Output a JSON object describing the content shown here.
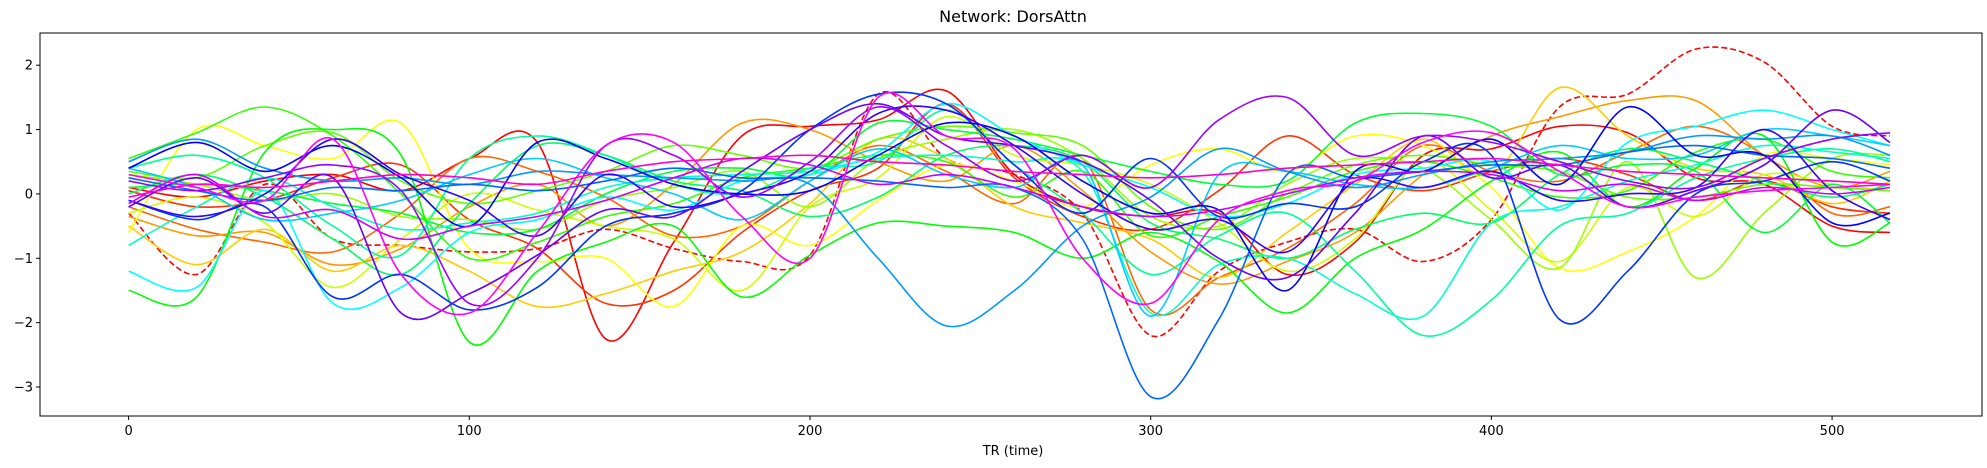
{
  "chart_data": {
    "type": "line",
    "title": "Network: DorsAttn",
    "xlabel": "TR (time)",
    "ylabel": "",
    "xlim": [
      -26,
      544
    ],
    "ylim": [
      -3.45,
      2.5
    ],
    "xticks": [
      0,
      100,
      200,
      300,
      400,
      500
    ],
    "yticks": [
      -3,
      -2,
      -1,
      0,
      1,
      2
    ],
    "grid": false,
    "legend": "none",
    "x": [
      0,
      20,
      40,
      60,
      80,
      100,
      120,
      140,
      160,
      180,
      200,
      220,
      240,
      260,
      280,
      300,
      320,
      340,
      360,
      380,
      400,
      420,
      440,
      460,
      480,
      500,
      517
    ],
    "series": [
      {
        "color": "#ff0000",
        "dashed": true,
        "values": [
          -0.3,
          -1.25,
          0.15,
          -0.7,
          -0.8,
          -0.9,
          -0.85,
          -0.55,
          -0.85,
          -1.05,
          -0.95,
          1.55,
          0.55,
          0.3,
          -0.3,
          -2.2,
          -1.2,
          -0.75,
          -0.55,
          -1.05,
          -0.4,
          1.35,
          1.55,
          2.25,
          2.05,
          1.05,
          0.9
        ]
      },
      {
        "color": "#ff0000",
        "values": [
          0.1,
          -0.05,
          0.2,
          0.3,
          0.05,
          0.55,
          0.8,
          -2.25,
          -0.75,
          0.9,
          1.05,
          1.15,
          1.6,
          0.3,
          -0.2,
          -0.35,
          -0.3,
          -1.25,
          -0.75,
          0.6,
          0.7,
          1.05,
          0.95,
          0.25,
          0.15,
          -0.5,
          -0.6
        ]
      },
      {
        "color": "#ff3300",
        "values": [
          0.05,
          -0.2,
          -0.1,
          0.25,
          0.45,
          -0.4,
          -0.85,
          -1.7,
          -1.5,
          -0.6,
          0.05,
          0.4,
          1.4,
          0.25,
          -0.35,
          -0.55,
          0.05,
          0.9,
          0.3,
          0.05,
          0.35,
          0.55,
          0.3,
          -0.1,
          0.2,
          -0.2,
          -0.3
        ]
      },
      {
        "color": "#ff6600",
        "values": [
          -0.2,
          -0.55,
          -0.75,
          -0.9,
          -0.3,
          0.55,
          0.35,
          -0.05,
          -0.65,
          -0.5,
          0.2,
          0.75,
          0.35,
          -0.15,
          0.55,
          -1.8,
          -1.3,
          -0.85,
          -0.15,
          0.75,
          0.35,
          0.2,
          0.65,
          1.05,
          0.6,
          -0.3,
          -0.2
        ]
      },
      {
        "color": "#ff9900",
        "values": [
          -0.35,
          -0.65,
          -0.6,
          -1.1,
          -0.85,
          -0.2,
          0.15,
          -0.5,
          0.15,
          1.1,
          1.0,
          0.5,
          0.2,
          0.75,
          0.05,
          -0.9,
          -1.4,
          -1.05,
          -0.6,
          0.3,
          0.9,
          1.2,
          1.45,
          1.45,
          0.6,
          0.1,
          0.35
        ]
      },
      {
        "color": "#ffcc00",
        "values": [
          -0.5,
          -1.1,
          -0.55,
          -1.2,
          -0.8,
          -1.2,
          -1.75,
          -1.55,
          -1.2,
          -0.9,
          -0.15,
          0.85,
          0.55,
          -0.2,
          -0.45,
          -0.7,
          -1.3,
          -0.6,
          0.15,
          0.85,
          0.3,
          1.65,
          0.9,
          0.4,
          0.3,
          -0.15,
          0.2
        ]
      },
      {
        "color": "#ffff00",
        "values": [
          -0.6,
          1.0,
          0.75,
          0.55,
          1.1,
          -0.85,
          -1.05,
          -1.0,
          -1.75,
          -0.5,
          -0.8,
          -0.1,
          0.45,
          0.2,
          -0.2,
          0.45,
          0.7,
          0.35,
          0.9,
          0.75,
          0.1,
          -1.15,
          -0.9,
          -0.35,
          0.6,
          0.55,
          0.45
        ]
      },
      {
        "color": "#ccff00",
        "values": [
          -0.3,
          -0.05,
          -0.45,
          -1.45,
          -0.7,
          0.0,
          -0.25,
          -0.5,
          -0.7,
          -1.5,
          -0.2,
          0.25,
          1.2,
          0.6,
          0.45,
          0.15,
          -0.45,
          -1.2,
          -0.7,
          0.5,
          -0.25,
          -1.05,
          0.1,
          -0.35,
          0.3,
          0.15,
          0.05
        ]
      },
      {
        "color": "#99ff00",
        "values": [
          0.3,
          0.15,
          -0.1,
          0.0,
          -0.35,
          -0.4,
          -0.55,
          -0.1,
          0.1,
          0.35,
          -0.2,
          0.55,
          0.85,
          1.0,
          0.55,
          -0.35,
          -0.5,
          0.15,
          0.55,
          0.4,
          -0.4,
          -1.15,
          0.5,
          -1.3,
          -0.3,
          0.55,
          0.6
        ]
      },
      {
        "color": "#66ff00",
        "values": [
          0.35,
          0.25,
          0.75,
          0.95,
          0.2,
          -0.15,
          0.05,
          0.35,
          0.75,
          0.6,
          0.4,
          0.85,
          1.05,
          0.95,
          0.75,
          -0.2,
          -0.55,
          0.0,
          0.45,
          0.6,
          0.45,
          0.35,
          -0.05,
          -0.05,
          0.15,
          0.1,
          0.05
        ]
      },
      {
        "color": "#33ff00",
        "values": [
          0.55,
          0.95,
          1.35,
          0.9,
          0.0,
          -1.0,
          -0.75,
          -0.35,
          -0.15,
          0.25,
          0.4,
          0.6,
          0.5,
          -0.05,
          0.35,
          -0.65,
          -0.35,
          -0.05,
          0.35,
          0.5,
          0.25,
          -0.05,
          0.05,
          0.65,
          0.85,
          0.35,
          0.25
        ]
      },
      {
        "color": "#00ff00",
        "values": [
          -1.5,
          -1.6,
          0.65,
          1.0,
          0.6,
          -2.3,
          -1.2,
          -0.75,
          -0.5,
          -1.6,
          -0.95,
          -0.45,
          -0.5,
          -0.6,
          -1.0,
          -0.6,
          -1.05,
          -1.85,
          -1.0,
          -0.55,
          0.2,
          0.65,
          -0.2,
          0.4,
          0.9,
          -0.75,
          -0.45
        ]
      },
      {
        "color": "#00ff33",
        "values": [
          0.1,
          0.15,
          0.05,
          -0.15,
          -0.3,
          -0.6,
          -0.55,
          0.0,
          0.35,
          0.4,
          0.3,
          1.1,
          1.0,
          0.85,
          0.6,
          0.35,
          0.15,
          0.2,
          1.1,
          1.25,
          1.05,
          0.3,
          0.45,
          0.35,
          -0.6,
          0.15,
          -0.45
        ]
      },
      {
        "color": "#00ff66",
        "values": [
          0.0,
          0.3,
          -0.05,
          -0.7,
          -1.25,
          -0.15,
          0.75,
          0.6,
          0.2,
          0.05,
          -0.35,
          -0.05,
          0.6,
          0.75,
          0.5,
          -0.45,
          -0.7,
          -1.0,
          -0.55,
          -0.3,
          -0.45,
          0.3,
          0.7,
          0.5,
          0.2,
          -0.05,
          0.15
        ]
      },
      {
        "color": "#00ff99",
        "values": [
          0.4,
          0.6,
          0.25,
          -0.5,
          -0.95,
          0.55,
          0.9,
          0.6,
          0.15,
          0.0,
          0.4,
          0.5,
          1.3,
          0.45,
          -0.3,
          -1.25,
          -0.65,
          -0.3,
          -1.2,
          -2.2,
          -1.65,
          -0.5,
          -0.3,
          0.25,
          0.55,
          0.7,
          0.5
        ]
      },
      {
        "color": "#00ffcc",
        "values": [
          -0.8,
          -0.2,
          0.25,
          -0.2,
          -0.55,
          -0.45,
          -0.3,
          0.1,
          0.25,
          0.3,
          0.35,
          0.55,
          0.6,
          0.5,
          0.35,
          -1.85,
          -1.1,
          -1.0,
          -1.55,
          -1.9,
          -0.45,
          -0.2,
          0.2,
          0.45,
          0.75,
          0.65,
          0.55
        ]
      },
      {
        "color": "#00ffff",
        "values": [
          -1.2,
          -1.45,
          0.05,
          -1.7,
          -1.45,
          -0.6,
          -0.4,
          -0.05,
          -0.25,
          0.2,
          0.3,
          0.65,
          1.4,
          0.9,
          0.45,
          0.1,
          -0.35,
          -0.15,
          0.3,
          0.4,
          0.5,
          -0.25,
          0.8,
          1.05,
          1.3,
          1.0,
          0.75
        ]
      },
      {
        "color": "#00ccff",
        "values": [
          0.4,
          0.1,
          -0.4,
          -0.3,
          -0.1,
          0.3,
          0.55,
          0.25,
          0.0,
          -0.4,
          0.2,
          0.7,
          0.3,
          0.1,
          0.45,
          -1.9,
          0.3,
          0.35,
          0.15,
          0.1,
          0.4,
          0.75,
          0.55,
          0.6,
          1.0,
          0.9,
          0.75
        ]
      },
      {
        "color": "#0099ff",
        "values": [
          0.5,
          0.85,
          0.4,
          0.2,
          0.25,
          0.15,
          0.35,
          0.3,
          0.25,
          0.2,
          0.15,
          -1.0,
          -2.05,
          -1.5,
          -0.5,
          -0.05,
          0.7,
          0.35,
          0.1,
          0.3,
          0.5,
          0.55,
          0.65,
          0.9,
          0.85,
          0.9,
          0.6
        ]
      },
      {
        "color": "#0066ff",
        "values": [
          0.25,
          0.05,
          -0.1,
          0.1,
          0.05,
          0.15,
          0.05,
          0.2,
          0.4,
          0.25,
          0.25,
          0.2,
          0.1,
          0.1,
          -0.7,
          -3.15,
          -1.95,
          0.3,
          0.25,
          0.35,
          0.45,
          0.45,
          0.65,
          0.75,
          0.6,
          0.55,
          0.4
        ]
      },
      {
        "color": "#0033ff",
        "values": [
          -0.1,
          -0.4,
          -0.2,
          -1.6,
          -1.25,
          -1.8,
          -1.45,
          -0.5,
          -0.3,
          0.05,
          1.0,
          1.55,
          1.4,
          0.45,
          -0.3,
          0.55,
          -0.35,
          -0.15,
          -0.2,
          0.5,
          0.6,
          -1.95,
          -1.2,
          0.0,
          0.2,
          0.5,
          0.2
        ]
      },
      {
        "color": "#0000ff",
        "values": [
          0.4,
          0.8,
          0.35,
          0.75,
          0.25,
          -0.5,
          0.8,
          0.55,
          0.15,
          0.0,
          0.05,
          0.6,
          1.1,
          0.9,
          0.2,
          -0.3,
          -0.25,
          -1.5,
          0.35,
          0.35,
          0.85,
          0.15,
          1.35,
          0.6,
          0.6,
          -0.45,
          -0.3
        ]
      },
      {
        "color": "#3300ff",
        "values": [
          -0.1,
          -0.35,
          0.0,
          0.85,
          0.3,
          -0.1,
          -0.65,
          0.3,
          -0.2,
          0.0,
          0.35,
          1.25,
          1.3,
          0.75,
          0.0,
          -0.55,
          -0.4,
          -0.9,
          0.2,
          0.1,
          0.35,
          -0.1,
          0.0,
          0.1,
          1.0,
          0.05,
          -0.4
        ]
      },
      {
        "color": "#6600ff",
        "values": [
          -0.2,
          0.25,
          -0.3,
          0.25,
          -1.85,
          -1.55,
          -0.95,
          -0.25,
          -0.35,
          0.35,
          1.0,
          1.4,
          0.9,
          0.75,
          0.5,
          -0.1,
          -1.0,
          -1.3,
          -0.3,
          0.9,
          0.25,
          0.45,
          -0.2,
          0.05,
          0.45,
          1.3,
          0.8
        ]
      },
      {
        "color": "#9900ff",
        "values": [
          0.2,
          0.05,
          0.25,
          0.45,
          0.05,
          -1.7,
          -1.0,
          0.75,
          0.6,
          -0.05,
          0.5,
          1.35,
          0.75,
          0.2,
          0.6,
          0.1,
          1.15,
          1.5,
          0.6,
          0.9,
          0.8,
          0.5,
          0.2,
          0.1,
          0.55,
          0.85,
          0.95
        ]
      },
      {
        "color": "#cc00ff",
        "values": [
          -0.15,
          0.3,
          -0.35,
          -0.25,
          -0.7,
          -0.5,
          -0.35,
          -0.1,
          0.25,
          0.55,
          0.45,
          0.15,
          0.3,
          0.1,
          -0.2,
          -0.35,
          -0.25,
          0.0,
          0.25,
          0.35,
          0.3,
          0.05,
          0.15,
          -0.1,
          0.1,
          0.0,
          0.1
        ]
      },
      {
        "color": "#ff00ff",
        "values": [
          0.3,
          0.1,
          -0.1,
          0.85,
          -1.25,
          -1.85,
          -0.6,
          0.75,
          0.8,
          -0.35,
          -1.0,
          1.5,
          0.9,
          0.7,
          -1.0,
          -1.7,
          -0.4,
          0.05,
          0.2,
          0.8,
          0.95,
          0.35,
          -0.2,
          -0.05,
          0.05,
          0.1,
          0.15
        ]
      },
      {
        "color": "#ff00cc",
        "values": [
          -0.05,
          0.15,
          0.1,
          0.2,
          0.3,
          0.25,
          0.15,
          0.35,
          0.5,
          0.55,
          0.6,
          0.5,
          0.45,
          0.35,
          0.3,
          0.25,
          0.3,
          0.4,
          0.45,
          0.5,
          0.55,
          0.45,
          0.35,
          0.3,
          0.25,
          0.2,
          0.15
        ]
      }
    ]
  }
}
